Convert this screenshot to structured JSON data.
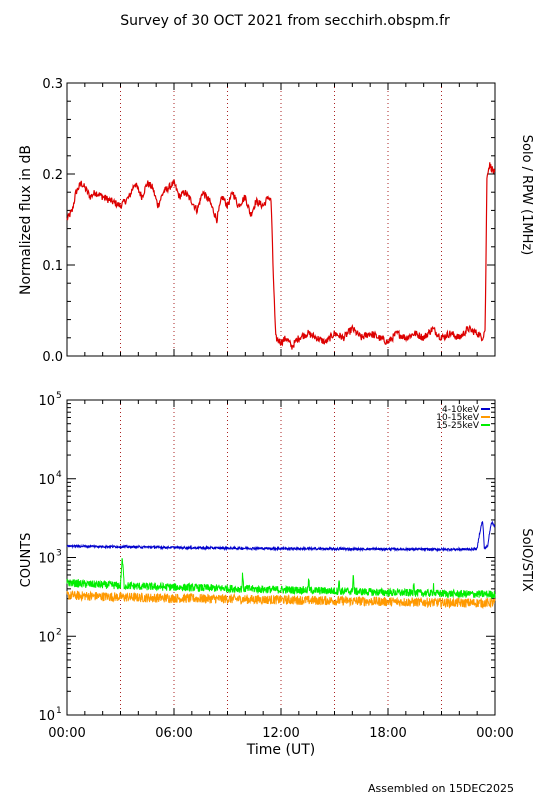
{
  "title": "Survey of 30 OCT 2021 from secchirh.obspm.fr",
  "footer": "Assembled on 15DEC2025",
  "xlabel": "Time (UT)",
  "x_ticks": [
    "00:00",
    "06:00",
    "12:00",
    "18:00",
    "00:00"
  ],
  "colors": {
    "rpw": "#dd0000",
    "band_4_10": "#0000cc",
    "band_10_15": "#ff9900",
    "band_15_25": "#00ee00",
    "guides": "#aa2222"
  },
  "chart_data": [
    {
      "type": "line",
      "title": "",
      "ylabel": "Normalized flux in dB",
      "right_label": "Solo / RPW (1MHz)",
      "xlim": [
        0,
        24
      ],
      "ylim": [
        0,
        0.3
      ],
      "y_ticks": [
        "0.0",
        "0.1",
        "0.2",
        "0.3"
      ],
      "vertical_guides_hours": [
        3,
        6,
        9,
        12,
        15,
        18,
        21
      ],
      "grid": false,
      "series": [
        {
          "name": "",
          "color": "#dd0000",
          "x": [
            0.0,
            0.3,
            0.5,
            0.8,
            1.0,
            1.3,
            1.6,
            2.0,
            2.5,
            3.0,
            3.5,
            3.8,
            4.2,
            4.5,
            4.8,
            5.1,
            5.4,
            5.7,
            6.0,
            6.3,
            6.6,
            7.0,
            7.3,
            7.6,
            8.0,
            8.4,
            8.7,
            9.0,
            9.3,
            9.6,
            10.0,
            10.3,
            10.6,
            11.0,
            11.3,
            11.45,
            11.55,
            11.7,
            12.0,
            12.3,
            12.6,
            13.0,
            13.5,
            14.0,
            14.5,
            15.0,
            15.5,
            16.0,
            16.5,
            17.0,
            17.5,
            18.0,
            18.5,
            19.0,
            19.5,
            20.0,
            20.5,
            21.0,
            21.5,
            22.0,
            22.5,
            23.0,
            23.3,
            23.45,
            23.55,
            23.7,
            23.85,
            24.0
          ],
          "y": [
            0.15,
            0.16,
            0.18,
            0.19,
            0.185,
            0.175,
            0.18,
            0.175,
            0.17,
            0.165,
            0.175,
            0.19,
            0.175,
            0.19,
            0.185,
            0.165,
            0.18,
            0.185,
            0.19,
            0.175,
            0.18,
            0.17,
            0.16,
            0.18,
            0.17,
            0.15,
            0.175,
            0.165,
            0.18,
            0.165,
            0.175,
            0.155,
            0.17,
            0.165,
            0.175,
            0.17,
            0.1,
            0.02,
            0.015,
            0.02,
            0.01,
            0.02,
            0.025,
            0.02,
            0.015,
            0.025,
            0.02,
            0.03,
            0.02,
            0.025,
            0.02,
            0.015,
            0.025,
            0.02,
            0.025,
            0.02,
            0.03,
            0.02,
            0.025,
            0.02,
            0.03,
            0.025,
            0.02,
            0.03,
            0.2,
            0.21,
            0.205,
            0.2
          ]
        }
      ]
    },
    {
      "type": "line",
      "title": "",
      "ylabel": "COUNTS",
      "right_label": "SolO/STIX",
      "xlim": [
        0,
        24
      ],
      "ylim": [
        10,
        100000
      ],
      "yscale": "log",
      "y_tick_exponents": [
        "1",
        "2",
        "3",
        "4",
        "5"
      ],
      "y_tick_base": "10",
      "vertical_guides_hours": [
        3,
        6,
        9,
        12,
        15,
        18,
        21
      ],
      "grid": false,
      "legend_position": "top-right",
      "series": [
        {
          "name": "4-10keV",
          "color": "#0000cc",
          "x": [
            0,
            2,
            4,
            6,
            8,
            10,
            12,
            14,
            16,
            18,
            20,
            22,
            23.0,
            23.3,
            23.4,
            23.6,
            23.8,
            24.0
          ],
          "y": [
            1400,
            1380,
            1360,
            1340,
            1320,
            1310,
            1300,
            1290,
            1280,
            1280,
            1270,
            1270,
            1280,
            2900,
            1300,
            1400,
            2800,
            2500
          ]
        },
        {
          "name": "10-15keV",
          "color": "#ff9900",
          "x": [
            0,
            2,
            4,
            6,
            8,
            10,
            12,
            14,
            16,
            18,
            20,
            22,
            24
          ],
          "y": [
            330,
            320,
            310,
            305,
            300,
            295,
            290,
            285,
            280,
            275,
            270,
            265,
            265
          ]
        },
        {
          "name": "15-25keV",
          "color": "#00ee00",
          "x": [
            0,
            1,
            2,
            3.0,
            3.1,
            3.2,
            4,
            6,
            8,
            9.8,
            9.85,
            9.9,
            10,
            12,
            13.5,
            13.55,
            13.6,
            14,
            15.2,
            15.25,
            15.3,
            16.0,
            16.05,
            16.1,
            17,
            18,
            19.4,
            19.45,
            19.5,
            20.5,
            20.55,
            20.6,
            22,
            24
          ],
          "y": [
            480,
            460,
            450,
            440,
            950,
            440,
            430,
            420,
            410,
            400,
            620,
            400,
            400,
            390,
            385,
            540,
            385,
            380,
            375,
            520,
            375,
            370,
            640,
            370,
            365,
            360,
            355,
            520,
            355,
            350,
            460,
            350,
            345,
            340
          ]
        }
      ]
    }
  ]
}
